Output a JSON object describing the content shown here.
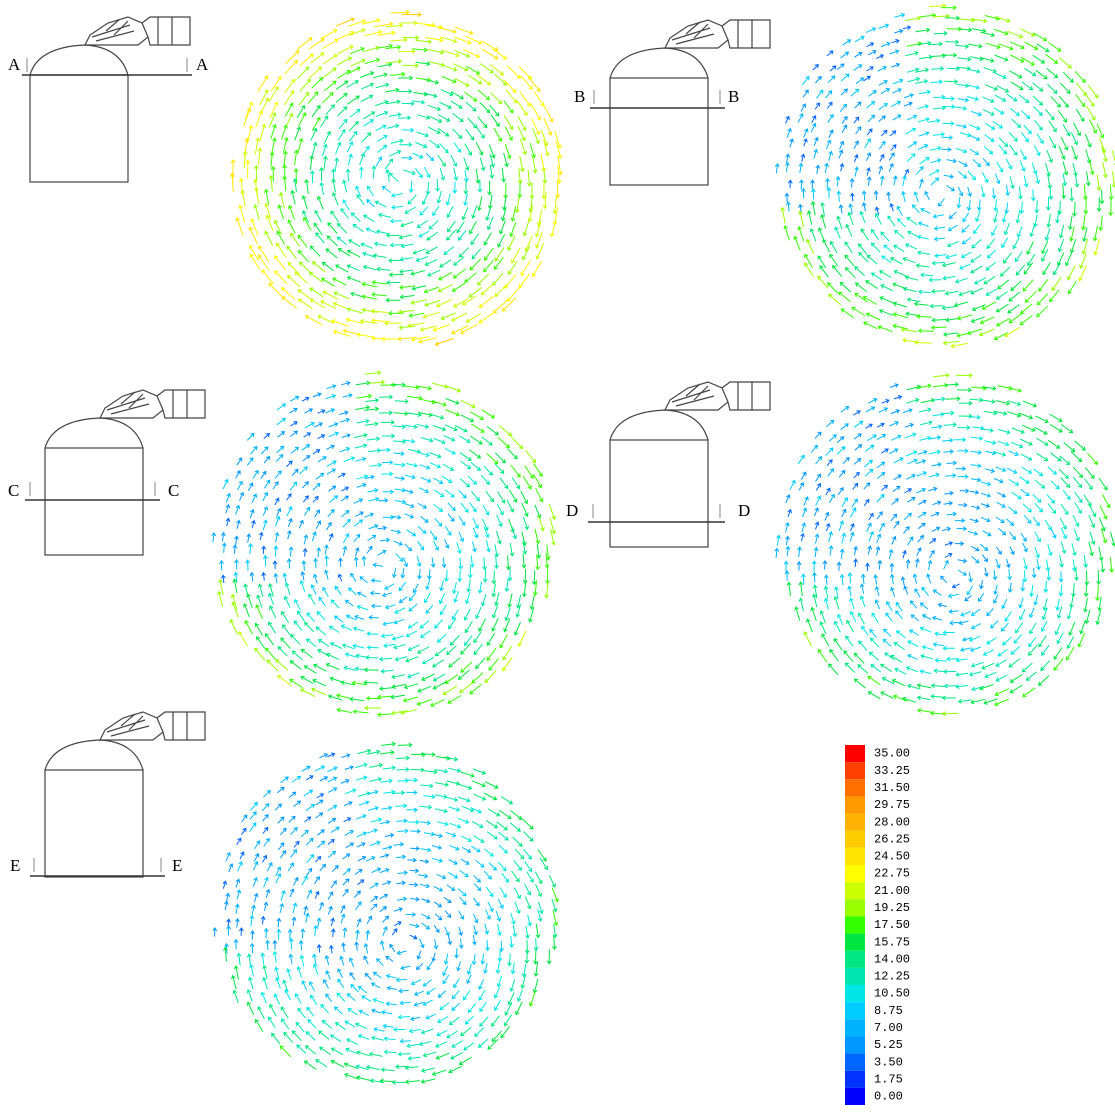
{
  "panels": [
    {
      "left": "A",
      "right": "A"
    },
    {
      "left": "B",
      "right": "B"
    },
    {
      "left": "C",
      "right": "C"
    },
    {
      "left": "D",
      "right": "D"
    },
    {
      "left": "E",
      "right": "E"
    }
  ],
  "legend": {
    "labels": [
      "35.00",
      "33.25",
      "31.50",
      "29.75",
      "28.00",
      "26.25",
      "24.50",
      "22.75",
      "21.00",
      "19.25",
      "17.50",
      "15.75",
      "14.00",
      "12.25",
      "10.50",
      "8.75",
      "7.00",
      "5.25",
      "3.50",
      "1.75",
      "0.00"
    ],
    "colors": [
      "#ff0000",
      "#ff4000",
      "#ff7000",
      "#ff9900",
      "#ffb300",
      "#ffcc00",
      "#ffe600",
      "#ffff00",
      "#ccff00",
      "#99ff00",
      "#33ff00",
      "#00e640",
      "#00e680",
      "#00e6b3",
      "#00e6e6",
      "#00ccff",
      "#00b3ff",
      "#0099ff",
      "#0066ff",
      "#0033ff",
      "#0000ff"
    ]
  }
}
